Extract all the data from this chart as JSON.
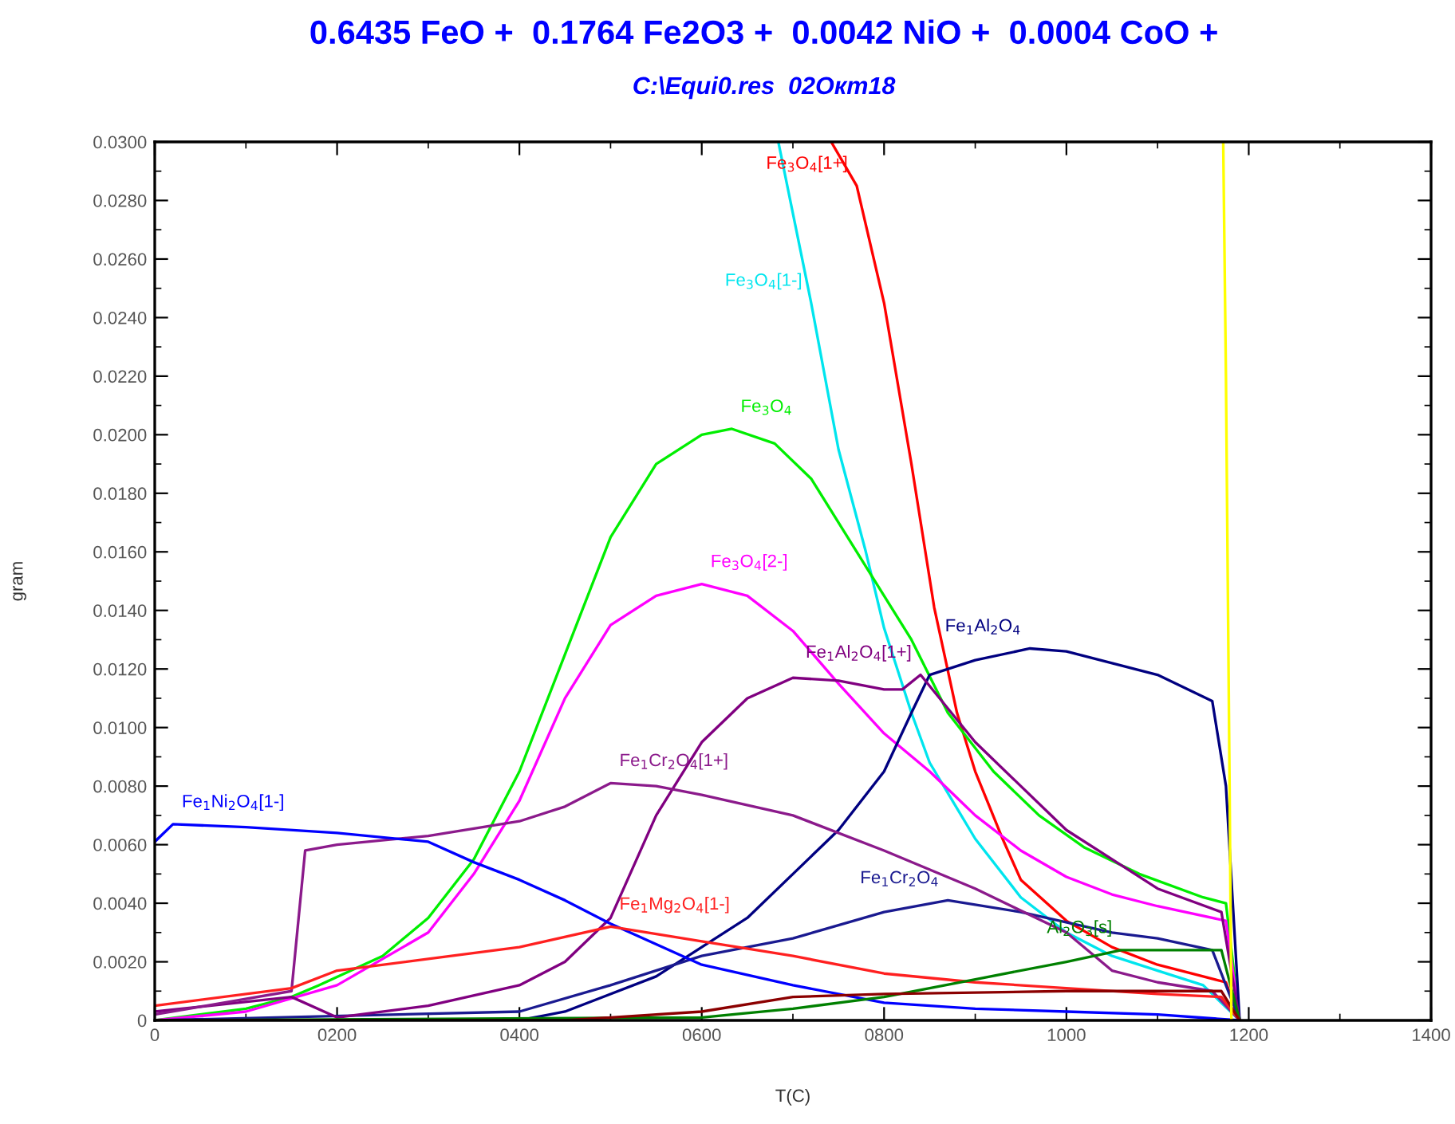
{
  "chart_data": {
    "type": "line",
    "title": "0.6435 FeO +  0.1764 Fe2O3 +  0.0042 NiO +  0.0004 CoO +",
    "subtitle": "C:\\Equi0.res  02Окт18",
    "xlabel": "T(C)",
    "ylabel": "gram",
    "xlim": [
      0,
      1400
    ],
    "xticks": [
      0,
      {
        "value": 200,
        "label": "0200"
      },
      {
        "value": 400,
        "label": "0400"
      },
      {
        "value": 600,
        "label": "0600"
      },
      {
        "value": 800,
        "label": "0800"
      },
      1000,
      1200,
      1400
    ],
    "ylim": [
      0,
      0.03
    ],
    "yticks": [
      0,
      {
        "value": 0.002,
        "label": "0.0020"
      },
      {
        "value": 0.004,
        "label": "0.0040"
      },
      {
        "value": 0.006,
        "label": "0.0060"
      },
      {
        "value": 0.008,
        "label": "0.0080"
      },
      {
        "value": 0.01,
        "label": "0.0100"
      },
      {
        "value": 0.012,
        "label": "0.0120"
      },
      {
        "value": 0.014,
        "label": "0.0140"
      },
      {
        "value": 0.016,
        "label": "0.0160"
      },
      {
        "value": 0.018,
        "label": "0.0180"
      },
      {
        "value": 0.02,
        "label": "0.0200"
      },
      {
        "value": 0.022,
        "label": "0.0220"
      },
      {
        "value": 0.024,
        "label": "0.0240"
      },
      {
        "value": 0.026,
        "label": "0.0260"
      },
      {
        "value": 0.028,
        "label": "0.0280"
      },
      {
        "value": 0.03,
        "label": "0.0300"
      }
    ],
    "grid": false,
    "legend": false,
    "marker": "none",
    "line_style": "solid",
    "series": [
      {
        "name": "Fe$_{3}$O$_{4}$[1+]",
        "color": "#ff0000",
        "x": [
          742,
          770,
          800,
          830,
          855,
          880,
          900,
          930,
          950,
          1000,
          1050,
          1100,
          1150,
          1175,
          1190
        ],
        "values": [
          0.03,
          0.0285,
          0.0245,
          0.019,
          0.0141,
          0.0105,
          0.0085,
          0.0062,
          0.0048,
          0.0034,
          0.0025,
          0.0019,
          0.0015,
          0.0013,
          0
        ]
      },
      {
        "name": "Fe$_{3}$O$_{4}$[1-]",
        "color": "#00e5ee",
        "x": [
          684,
          720,
          750,
          780,
          800,
          830,
          850,
          900,
          950,
          1000,
          1050,
          1100,
          1150,
          1190
        ],
        "values": [
          0.03,
          0.0245,
          0.0195,
          0.016,
          0.0134,
          0.0105,
          0.0088,
          0.0062,
          0.0042,
          0.003,
          0.0022,
          0.0017,
          0.0012,
          0
        ]
      },
      {
        "name": "Fe$_{3}$O$_{4}$",
        "color": "#00ee00",
        "x": [
          0,
          100,
          150,
          180,
          250,
          300,
          350,
          400,
          450,
          500,
          550,
          600,
          633,
          680,
          720,
          760,
          800,
          830,
          870,
          920,
          970,
          1020,
          1080,
          1150,
          1175,
          1190
        ],
        "values": [
          0,
          0.0004,
          0.0008,
          0.0012,
          0.0022,
          0.0035,
          0.0055,
          0.0085,
          0.0125,
          0.0165,
          0.019,
          0.02,
          0.0202,
          0.0197,
          0.0185,
          0.0165,
          0.0145,
          0.013,
          0.0105,
          0.0085,
          0.007,
          0.0059,
          0.005,
          0.0042,
          0.004,
          0
        ]
      },
      {
        "name": "Fe$_{3}$O$_{4}$[2-]",
        "color": "#ff00ff",
        "x": [
          0,
          100,
          200,
          300,
          350,
          400,
          450,
          500,
          550,
          600,
          650,
          700,
          750,
          800,
          850,
          900,
          950,
          1000,
          1050,
          1100,
          1175,
          1190
        ],
        "values": [
          0,
          0.0003,
          0.0012,
          0.003,
          0.005,
          0.0075,
          0.011,
          0.0135,
          0.0145,
          0.0149,
          0.0145,
          0.0133,
          0.0115,
          0.0098,
          0.0085,
          0.007,
          0.0058,
          0.0049,
          0.0043,
          0.0039,
          0.0034,
          0
        ]
      },
      {
        "name": "Fe$_{1}$Al$_{2}$O$_{4}$",
        "color": "#000080",
        "x": [
          0,
          400,
          450,
          550,
          650,
          750,
          800,
          830,
          850,
          900,
          960,
          1000,
          1050,
          1100,
          1160,
          1175,
          1190
        ],
        "values": [
          0,
          0,
          0.0003,
          0.0015,
          0.0035,
          0.0065,
          0.0085,
          0.0105,
          0.0118,
          0.0123,
          0.0127,
          0.0126,
          0.0122,
          0.0118,
          0.0109,
          0.008,
          0
        ]
      },
      {
        "name": "Fe$_{1}$Cr$_{2}$O$_{4}$",
        "color": "#1a1a90",
        "x": [
          0,
          400,
          500,
          600,
          700,
          800,
          870,
          950,
          1050,
          1100,
          1160,
          1190
        ],
        "values": [
          0,
          0.0003,
          0.0012,
          0.0022,
          0.0028,
          0.0037,
          0.0041,
          0.0037,
          0.003,
          0.0028,
          0.0024,
          0
        ]
      },
      {
        "name": "Fe$_{1}$Al$_{2}$O$_{4}$[1+]",
        "color": "#800080",
        "x": [
          0,
          150,
          200,
          300,
          400,
          450,
          500,
          550,
          600,
          650,
          700,
          750,
          800,
          820,
          840,
          900,
          950,
          1000,
          1050,
          1100,
          1170,
          1190
        ],
        "values": [
          0.0003,
          0.0008,
          0.0001,
          0.0005,
          0.0012,
          0.002,
          0.0035,
          0.007,
          0.0095,
          0.011,
          0.0117,
          0.0116,
          0.0113,
          0.0113,
          0.0118,
          0.0095,
          0.008,
          0.0065,
          0.0055,
          0.0045,
          0.0037,
          0
        ]
      },
      {
        "name": "Fe$_{1}$Cr$_{2}$O$_{4}$[1+]",
        "color": "#8b1a8b",
        "x": [
          0,
          150,
          165,
          200,
          300,
          400,
          450,
          500,
          550,
          600,
          700,
          800,
          900,
          1000,
          1050,
          1100,
          1160,
          1190
        ],
        "values": [
          0.0002,
          0.001,
          0.0058,
          0.006,
          0.0063,
          0.0068,
          0.0073,
          0.0081,
          0.008,
          0.0077,
          0.007,
          0.0058,
          0.0045,
          0.003,
          0.0017,
          0.0013,
          0.001,
          0
        ]
      },
      {
        "name": "Fe$_{1}$Ni$_{2}$O$_{4}$[1-]",
        "color": "#0000ff",
        "x": [
          0,
          20,
          100,
          200,
          300,
          350,
          400,
          450,
          500,
          550,
          600,
          700,
          800,
          900,
          1000,
          1100,
          1190
        ],
        "values": [
          0.0061,
          0.0067,
          0.0066,
          0.0064,
          0.0061,
          0.0054,
          0.0048,
          0.0041,
          0.0033,
          0.0026,
          0.0019,
          0.0012,
          0.0006,
          0.0004,
          0.0003,
          0.0002,
          0
        ]
      },
      {
        "name": "Fe$_{1}$Mg$_{2}$O$_{4}$[1-]",
        "color": "#ff2020",
        "x": [
          0,
          150,
          200,
          300,
          400,
          500,
          600,
          700,
          800,
          900,
          1000,
          1100,
          1170,
          1190
        ],
        "values": [
          0.0005,
          0.0011,
          0.0017,
          0.0021,
          0.0025,
          0.0032,
          0.0027,
          0.0022,
          0.0016,
          0.0013,
          0.0011,
          0.0009,
          0.0008,
          0
        ]
      },
      {
        "name": "Al$_{2}$O$_{3}$[s]",
        "color": "#008000",
        "x": [
          0,
          600,
          700,
          800,
          900,
          1000,
          1060,
          1170,
          1190
        ],
        "values": [
          0,
          0.0001,
          0.0004,
          0.0008,
          0.0014,
          0.002,
          0.0024,
          0.0024,
          0
        ]
      },
      {
        "color": "#8b0000",
        "x": [
          0,
          450,
          600,
          700,
          800,
          1000,
          1170,
          1190
        ],
        "values": [
          0,
          0,
          0.0003,
          0.0008,
          0.0009,
          0.001,
          0.001,
          0
        ]
      },
      {
        "color": "#ffff00",
        "x": [
          1172,
          1175,
          1177,
          1179,
          1181
        ],
        "values": [
          0.03,
          0.022,
          0.015,
          0.008,
          0
        ]
      }
    ]
  }
}
